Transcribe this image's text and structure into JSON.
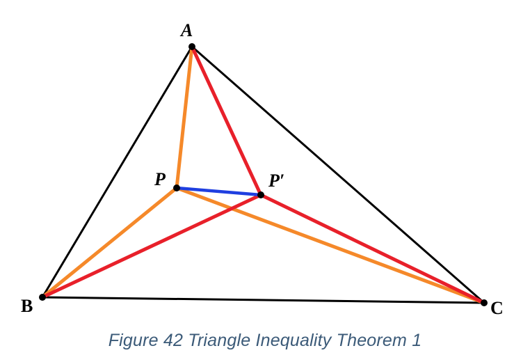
{
  "diagram": {
    "points": {
      "A": {
        "label": "A"
      },
      "B": {
        "label": "B"
      },
      "C": {
        "label": "C"
      },
      "P": {
        "label": "P"
      },
      "P2": {
        "label": "P′"
      }
    },
    "colors": {
      "triangle": "#000000",
      "p_segments": "#f5892a",
      "p_prime_segments": "#e8202a",
      "pp_prime_segment": "#1f3fe0",
      "vertex_dot": "#000000"
    }
  },
  "caption": "Figure 42 Triangle Inequality Theorem 1"
}
